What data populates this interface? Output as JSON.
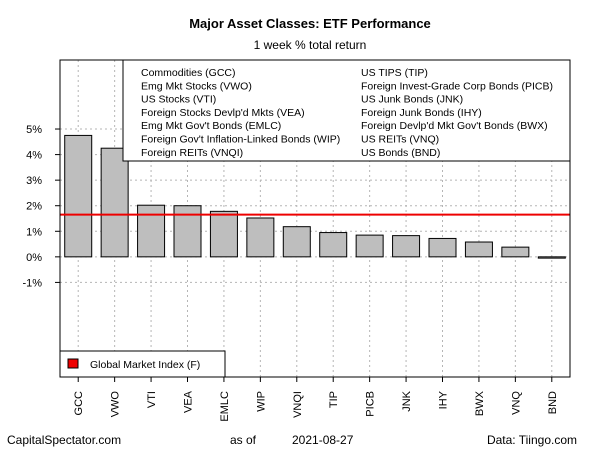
{
  "chart_data": {
    "type": "bar",
    "title": "Major Asset Classes: ETF Performance",
    "subtitle": "1 week % total return",
    "categories": [
      "GCC",
      "VWO",
      "VTI",
      "VEA",
      "EMLC",
      "WIP",
      "VNQI",
      "TIP",
      "PICB",
      "JNK",
      "IHY",
      "BWX",
      "VNQ",
      "BND"
    ],
    "values": [
      4.75,
      4.25,
      2.02,
      2.0,
      1.78,
      1.52,
      1.18,
      0.95,
      0.85,
      0.83,
      0.72,
      0.58,
      0.38,
      -0.05
    ],
    "ylim": [
      -4.7,
      7.7
    ],
    "yticks": [
      -1,
      0,
      1,
      2,
      3,
      4,
      5
    ],
    "ytick_labels": [
      "-1%",
      "0%",
      "1%",
      "2%",
      "3%",
      "4%",
      "5%"
    ],
    "reference_line": {
      "name": "Global Market Index (F)",
      "value": 1.65,
      "color": "#ee0000"
    },
    "grid": true,
    "bar_color": "#bebebe",
    "legend_entries": [
      "Commodities (GCC)",
      "Emg Mkt Stocks (VWO)",
      "US Stocks (VTI)",
      "Foreign Stocks Devlp'd Mkts (VEA)",
      "Emg Mkt Gov't Bonds (EMLC)",
      "Foreign Gov't Inflation-Linked Bonds (WIP)",
      "Foreign REITs (VNQI)",
      "US TIPS (TIP)",
      "Foreign Invest-Grade Corp Bonds (PICB)",
      "US Junk Bonds (JNK)",
      "Foreign Junk Bonds (IHY)",
      "Foreign Devlp'd Mkt Gov't Bonds (BWX)",
      "US REITs (VNQ)",
      "US Bonds (BND)"
    ]
  },
  "footer": {
    "source_left": "CapitalSpectator.com",
    "date_prefix": "as of",
    "date": "2021-08-27",
    "source_right": "Data: Tiingo.com"
  }
}
